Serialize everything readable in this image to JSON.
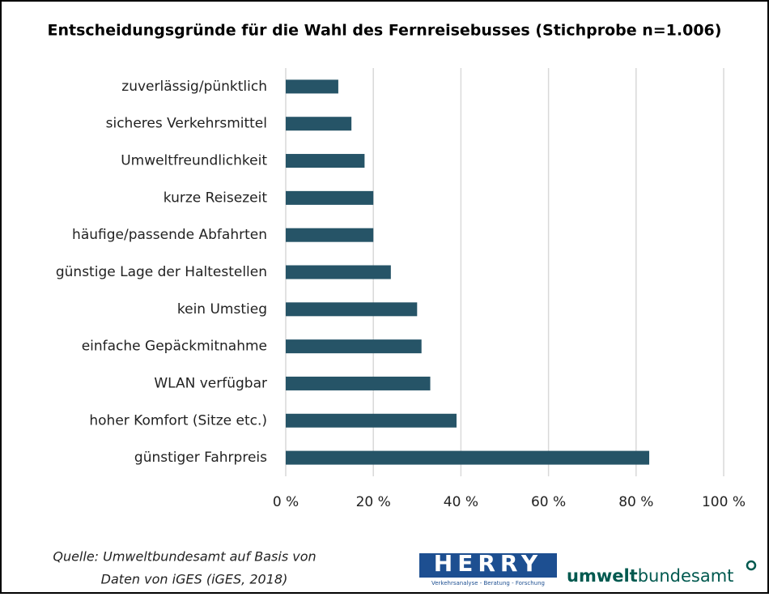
{
  "chart_data": {
    "type": "bar",
    "orientation": "horizontal",
    "title": "Entscheidungsgründe für die Wahl des Fernreisebusses (Stichprobe n=1.006)",
    "categories": [
      "zuverlässig/pünktlich",
      "sicheres Verkehrsmittel",
      "Umweltfreundlichkeit",
      "kurze Reisezeit",
      "häufige/passende Abfahrten",
      "günstige Lage der Haltestellen",
      "kein Umstieg",
      "einfache Gepäckmitnahme",
      "WLAN verfügbar",
      "hoher Komfort (Sitze etc.)",
      "günstiger Fahrpreis"
    ],
    "values": [
      12,
      15,
      18,
      20,
      20,
      24,
      30,
      31,
      33,
      39,
      83
    ],
    "color": "#265467",
    "xlim": [
      0,
      100
    ],
    "xticks": [
      {
        "value": 0,
        "label": "0 %"
      },
      {
        "value": 20,
        "label": "20 %"
      },
      {
        "value": 40,
        "label": "40 %"
      },
      {
        "value": 60,
        "label": "60 %"
      },
      {
        "value": 80,
        "label": "80 %"
      },
      {
        "value": 100,
        "label": "100 %"
      }
    ],
    "grid": true
  },
  "source": [
    "Quelle: Umweltbundesamt auf Basis von",
    "Daten von iGES (iGES, 2018)"
  ],
  "logos": {
    "herry": "HERRY",
    "herry_tagline": "Verkehrsanalyse - Beratung - Forschung",
    "uba_bold": "umwelt",
    "uba_rest": "bundesamt"
  }
}
